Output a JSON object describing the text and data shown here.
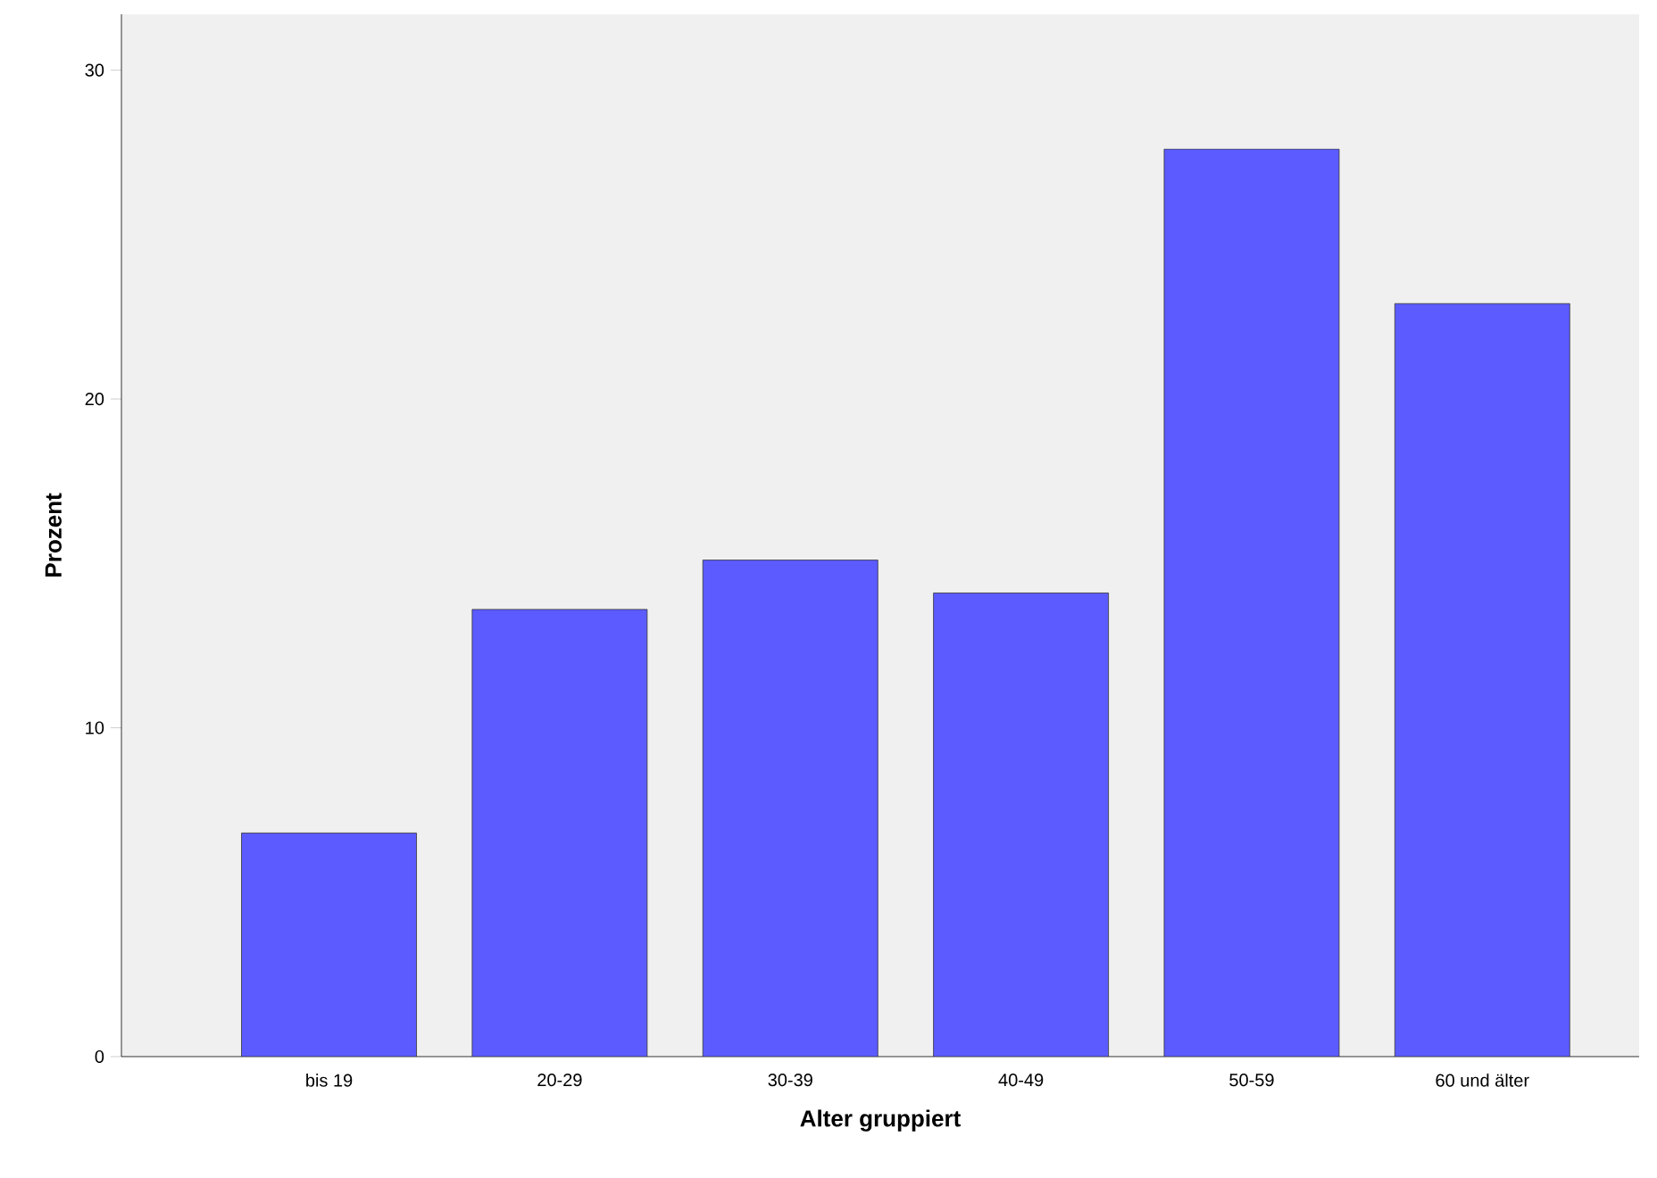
{
  "chart_data": {
    "type": "bar",
    "xlabel": "Alter gruppiert",
    "ylabel": "Prozent",
    "categories": [
      "bis 19",
      "20-29",
      "30-39",
      "40-49",
      "50-59",
      "60 und älter"
    ],
    "values": [
      6.8,
      13.6,
      15.1,
      14.1,
      27.6,
      22.9
    ],
    "color": "#5b5bff",
    "ylim": [
      0,
      31.7
    ],
    "yticks": [
      0,
      10,
      20,
      30
    ],
    "grid": false
  }
}
